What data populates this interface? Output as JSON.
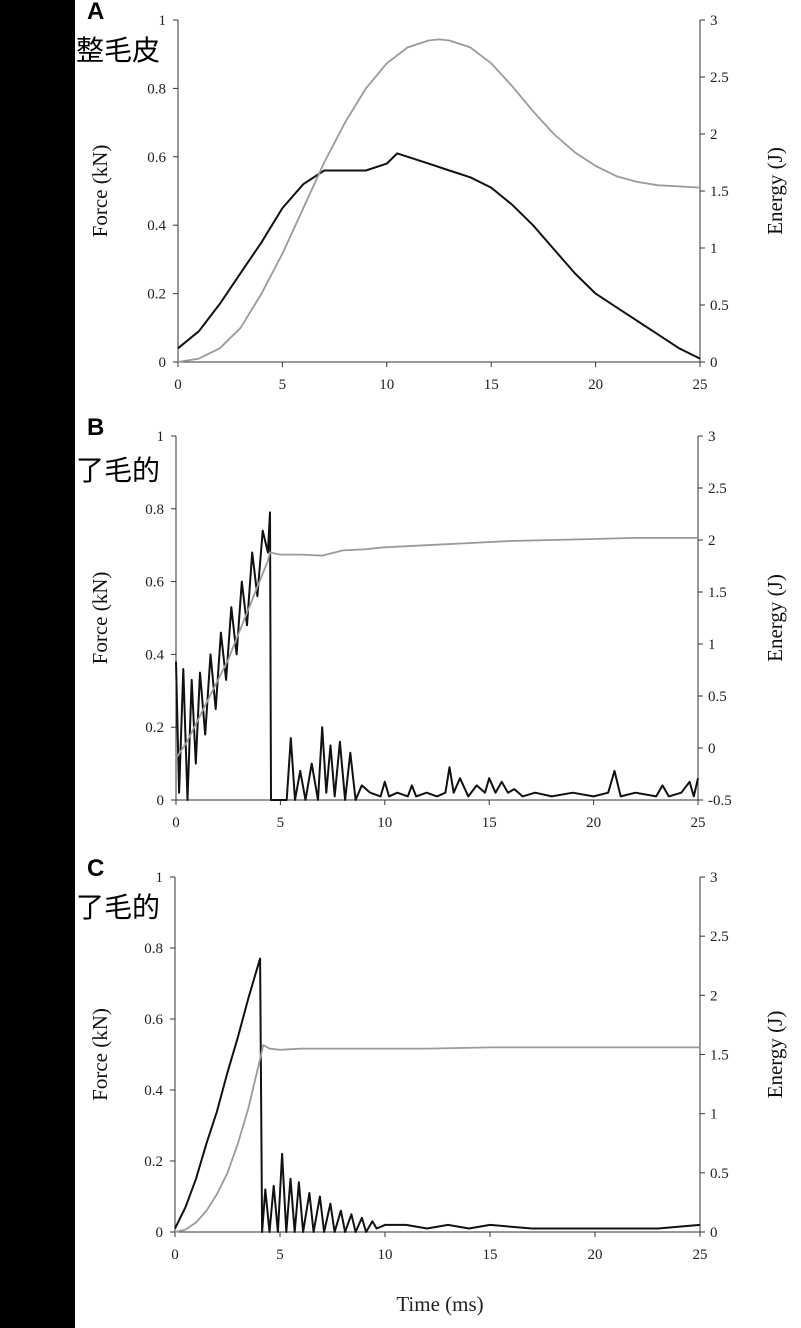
{
  "overlay_labels": [
    "整毛皮",
    "了毛的",
    "了毛的"
  ],
  "x_axis_title": "Time (ms)",
  "colors": {
    "force": "#111111",
    "energy": "#9a9a9a"
  },
  "chart_data": [
    {
      "type": "line",
      "panel": "A",
      "ylabel_left": "Force (kN)",
      "ylabel_right": "Energy (J)",
      "xlim": [
        0,
        25
      ],
      "ylim_left": [
        0,
        1
      ],
      "ylim_right": [
        0,
        3
      ],
      "xticks": [
        "0",
        "5",
        "10",
        "15",
        "20",
        "25"
      ],
      "yticks_left": [
        "0",
        "0.2",
        "0.4",
        "0.6",
        "0.8",
        "1"
      ],
      "yticks_right": [
        "0",
        "0.5",
        "1",
        "1.5",
        "2",
        "2.5",
        "3"
      ],
      "series": [
        {
          "axis": "left",
          "x": [
            0,
            1,
            2,
            3,
            4,
            5,
            6,
            7,
            8,
            9,
            10,
            10.5,
            11,
            12,
            13,
            14,
            15,
            16,
            17,
            18,
            19,
            20,
            21,
            22,
            23,
            24,
            25
          ],
          "values": [
            0.04,
            0.09,
            0.17,
            0.26,
            0.35,
            0.45,
            0.52,
            0.56,
            0.56,
            0.56,
            0.58,
            0.61,
            0.6,
            0.58,
            0.56,
            0.54,
            0.51,
            0.46,
            0.4,
            0.33,
            0.26,
            0.2,
            0.16,
            0.12,
            0.08,
            0.04,
            0.01
          ]
        },
        {
          "axis": "right",
          "x": [
            0,
            1,
            2,
            3,
            4,
            5,
            6,
            7,
            8,
            9,
            10,
            11,
            12,
            12.5,
            13,
            14,
            15,
            16,
            17,
            18,
            19,
            20,
            21,
            22,
            23,
            24,
            25
          ],
          "values": [
            0,
            0.03,
            0.12,
            0.3,
            0.6,
            0.95,
            1.35,
            1.75,
            2.1,
            2.4,
            2.62,
            2.76,
            2.82,
            2.83,
            2.82,
            2.76,
            2.62,
            2.42,
            2.2,
            2.0,
            1.84,
            1.72,
            1.63,
            1.58,
            1.55,
            1.54,
            1.53
          ]
        }
      ]
    },
    {
      "type": "line",
      "panel": "B",
      "ylabel_left": "Force (kN)",
      "ylabel_right": "Energy (J)",
      "xlim": [
        0,
        25
      ],
      "ylim_left": [
        0,
        1
      ],
      "ylim_right": [
        -0.5,
        3
      ],
      "xticks": [
        "0",
        "5",
        "10",
        "15",
        "20",
        "25"
      ],
      "yticks_left": [
        "0",
        "0.2",
        "0.4",
        "0.6",
        "0.8",
        "1"
      ],
      "yticks_right": [
        "-0.5",
        "0",
        "0.5",
        "1",
        "1.5",
        "2",
        "2.5",
        "3"
      ],
      "series": [
        {
          "axis": "left",
          "x": [
            0,
            0.15,
            0.35,
            0.55,
            0.75,
            0.95,
            1.15,
            1.4,
            1.65,
            1.9,
            2.15,
            2.4,
            2.65,
            2.9,
            3.15,
            3.4,
            3.65,
            3.9,
            4.15,
            4.4,
            4.5,
            4.55,
            4.75,
            5.0,
            5.3,
            5.5,
            5.7,
            5.95,
            6.2,
            6.5,
            6.8,
            7.0,
            7.2,
            7.4,
            7.6,
            7.85,
            8.1,
            8.35,
            8.6,
            8.9,
            9.3,
            9.8,
            10.0,
            10.2,
            10.6,
            11.1,
            11.3,
            11.5,
            12.0,
            12.5,
            12.9,
            13.1,
            13.3,
            13.6,
            14.0,
            14.4,
            14.8,
            15.0,
            15.3,
            15.6,
            15.9,
            16.2,
            16.6,
            17.2,
            18,
            19,
            20,
            20.7,
            21.0,
            21.3,
            22,
            23.0,
            23.3,
            23.6,
            24.2,
            24.6,
            24.8,
            25
          ],
          "values": [
            0.38,
            0.02,
            0.36,
            0.0,
            0.33,
            0.1,
            0.35,
            0.18,
            0.4,
            0.25,
            0.46,
            0.33,
            0.53,
            0.4,
            0.6,
            0.48,
            0.68,
            0.56,
            0.74,
            0.68,
            0.79,
            0.0,
            0.0,
            0.0,
            0.0,
            0.17,
            0.0,
            0.08,
            0.0,
            0.1,
            0.0,
            0.2,
            0.02,
            0.15,
            0.01,
            0.16,
            0.0,
            0.13,
            0.0,
            0.04,
            0.02,
            0.01,
            0.05,
            0.01,
            0.02,
            0.01,
            0.04,
            0.01,
            0.02,
            0.01,
            0.02,
            0.09,
            0.02,
            0.06,
            0.01,
            0.04,
            0.02,
            0.06,
            0.02,
            0.05,
            0.02,
            0.03,
            0.01,
            0.02,
            0.01,
            0.02,
            0.01,
            0.02,
            0.08,
            0.01,
            0.02,
            0.01,
            0.04,
            0.01,
            0.02,
            0.05,
            0.01,
            0.06
          ]
        },
        {
          "axis": "right",
          "x": [
            0,
            0.5,
            1,
            1.5,
            2,
            2.5,
            3,
            3.5,
            4,
            4.4,
            4.5,
            5,
            6,
            7,
            8,
            9,
            10,
            12,
            14,
            16,
            18,
            20,
            22,
            25
          ],
          "values": [
            -0.1,
            0.05,
            0.25,
            0.45,
            0.65,
            0.85,
            1.1,
            1.35,
            1.6,
            1.8,
            1.88,
            1.86,
            1.86,
            1.85,
            1.9,
            1.91,
            1.93,
            1.95,
            1.97,
            1.99,
            2.0,
            2.01,
            2.02,
            2.02
          ]
        }
      ]
    },
    {
      "type": "line",
      "panel": "C",
      "ylabel_left": "Force (kN)",
      "ylabel_right": "Energy (J)",
      "xlim": [
        0,
        25
      ],
      "ylim_left": [
        0,
        1
      ],
      "ylim_right": [
        0,
        3
      ],
      "xticks": [
        "0",
        "5",
        "10",
        "15",
        "20",
        "25"
      ],
      "yticks_left": [
        "0",
        "0.2",
        "0.4",
        "0.6",
        "0.8",
        "1"
      ],
      "yticks_right": [
        "0",
        "0.5",
        "1",
        "1.5",
        "2",
        "2.5",
        "3"
      ],
      "series": [
        {
          "axis": "left",
          "x": [
            0,
            0.5,
            1,
            1.5,
            2,
            2.5,
            3,
            3.5,
            4.0,
            4.05,
            4.15,
            4.3,
            4.5,
            4.7,
            4.9,
            5.1,
            5.3,
            5.5,
            5.7,
            5.9,
            6.1,
            6.4,
            6.6,
            6.9,
            7.1,
            7.4,
            7.6,
            7.9,
            8.1,
            8.4,
            8.6,
            8.9,
            9.1,
            9.4,
            9.6,
            10,
            11,
            12,
            13,
            14,
            15,
            17,
            19,
            21,
            23,
            25
          ],
          "values": [
            0.01,
            0.07,
            0.15,
            0.25,
            0.34,
            0.45,
            0.55,
            0.66,
            0.76,
            0.77,
            0.0,
            0.12,
            0.0,
            0.13,
            0.0,
            0.22,
            0.0,
            0.15,
            0.0,
            0.14,
            0.0,
            0.11,
            0.0,
            0.1,
            0.0,
            0.08,
            0.0,
            0.06,
            0.0,
            0.05,
            0.0,
            0.04,
            0.0,
            0.03,
            0.01,
            0.02,
            0.02,
            0.01,
            0.02,
            0.01,
            0.02,
            0.01,
            0.01,
            0.01,
            0.01,
            0.02
          ]
        },
        {
          "axis": "right",
          "x": [
            0,
            0.5,
            1,
            1.5,
            2,
            2.5,
            3,
            3.5,
            4.1,
            4.2,
            4.5,
            5,
            6,
            7,
            8,
            9,
            10,
            12,
            15,
            20,
            25
          ],
          "values": [
            0,
            0.02,
            0.08,
            0.18,
            0.32,
            0.5,
            0.75,
            1.05,
            1.5,
            1.58,
            1.55,
            1.54,
            1.55,
            1.55,
            1.55,
            1.55,
            1.55,
            1.55,
            1.56,
            1.56,
            1.56
          ]
        }
      ]
    }
  ]
}
